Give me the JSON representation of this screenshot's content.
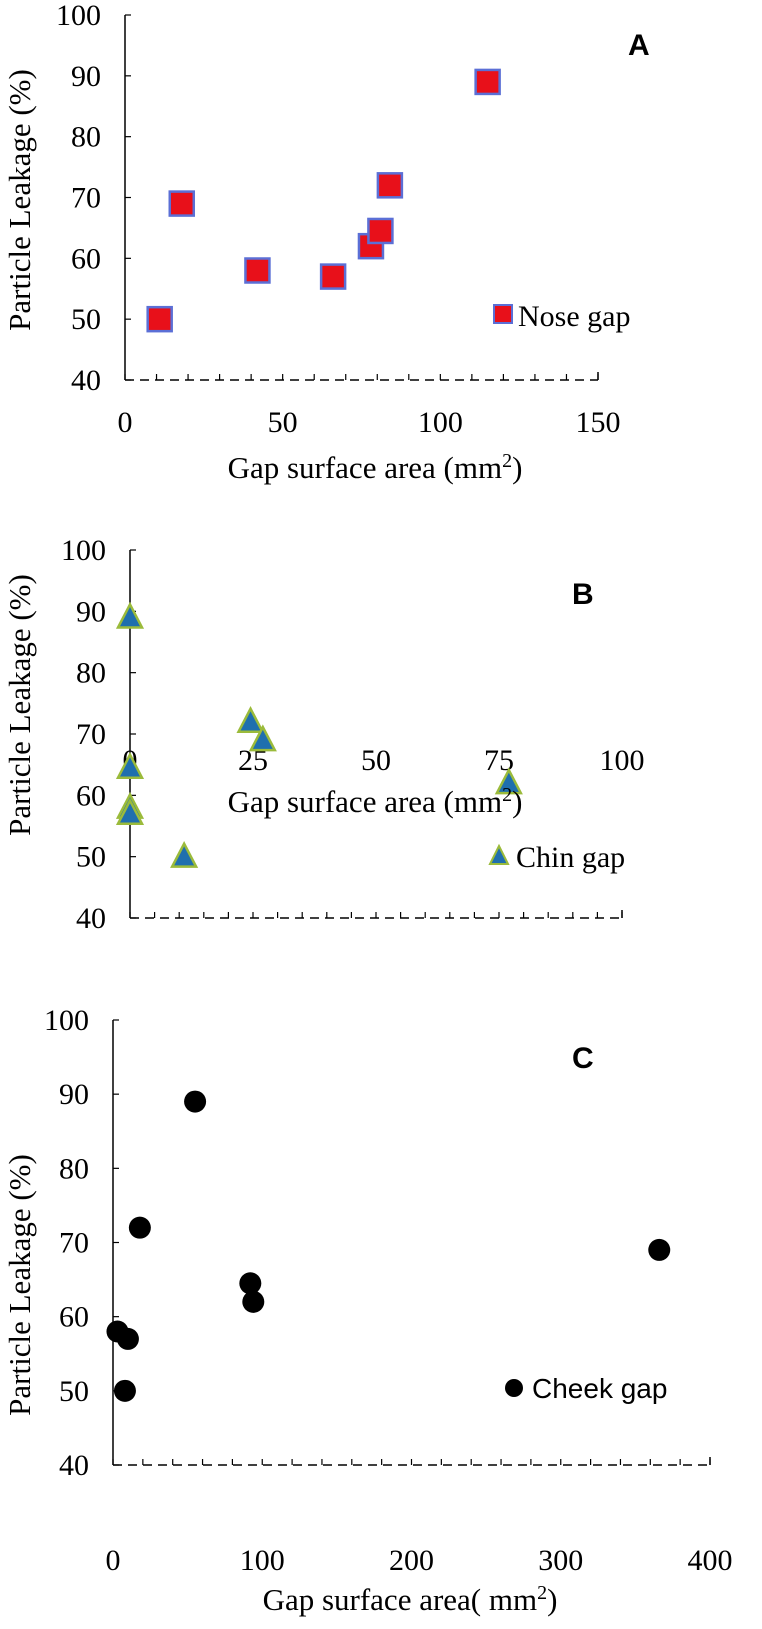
{
  "chart_data": [
    {
      "type": "scatter",
      "panel_label": "A",
      "xlabel": "Gap surface area (mm",
      "xlabel_sup": "2",
      "xlabel_tail": ")",
      "ylabel": "Particle Leakage (%)",
      "xlim": [
        0,
        150
      ],
      "ylim": [
        40,
        100
      ],
      "xticks": [
        "0",
        "50",
        "100",
        "150"
      ],
      "yticks": [
        "40",
        "50",
        "60",
        "70",
        "80",
        "90",
        "100"
      ],
      "grid": false,
      "legend_position": "lower-right",
      "series": [
        {
          "name": "Nose gap",
          "marker": "square",
          "color": "#e8101a",
          "edge_color": "#5b6fd6",
          "points": [
            [
              11,
              50
            ],
            [
              18,
              69
            ],
            [
              42,
              58
            ],
            [
              66,
              57
            ],
            [
              78,
              62
            ],
            [
              81,
              64.5
            ],
            [
              84,
              72
            ],
            [
              115,
              89
            ]
          ]
        }
      ]
    },
    {
      "type": "scatter",
      "panel_label": "B",
      "xlabel": "Gap surface area (mm",
      "xlabel_sup": "2",
      "xlabel_tail": ")",
      "ylabel": "Particle Leakage (%)",
      "xlim": [
        0,
        100
      ],
      "ylim": [
        40,
        100
      ],
      "xticks": [
        "0",
        "25",
        "50",
        "75",
        "100"
      ],
      "yticks": [
        "40",
        "50",
        "60",
        "70",
        "80",
        "90",
        "100"
      ],
      "grid": false,
      "legend_position": "lower-right",
      "series": [
        {
          "name": "Chin gap",
          "marker": "triangle",
          "color": "#1f6fae",
          "edge_color": "#9bbb3b",
          "points": [
            [
              0,
              89
            ],
            [
              0,
              64.5
            ],
            [
              0,
              58
            ],
            [
              0,
              57
            ],
            [
              11,
              50
            ],
            [
              24.5,
              72
            ],
            [
              27,
              69
            ],
            [
              77,
              62
            ]
          ]
        }
      ]
    },
    {
      "type": "scatter",
      "panel_label": "C",
      "xlabel": "Gap surface area( mm",
      "xlabel_sup": "2",
      "xlabel_tail": ")",
      "ylabel": "Particle Leakage (%)",
      "xlim": [
        0,
        400
      ],
      "ylim": [
        40,
        100
      ],
      "xticks": [
        "0",
        "100",
        "200",
        "300",
        "400"
      ],
      "yticks": [
        "40",
        "50",
        "60",
        "70",
        "80",
        "90",
        "100"
      ],
      "grid": false,
      "legend_position": "lower-right",
      "series": [
        {
          "name": "Cheek gap",
          "marker": "circle",
          "color": "#000000",
          "edge_color": "#000000",
          "points": [
            [
              3,
              58
            ],
            [
              8,
              50
            ],
            [
              10,
              57
            ],
            [
              18,
              72
            ],
            [
              55,
              89
            ],
            [
              92,
              64.5
            ],
            [
              94,
              62
            ],
            [
              366,
              69
            ]
          ]
        }
      ]
    }
  ]
}
